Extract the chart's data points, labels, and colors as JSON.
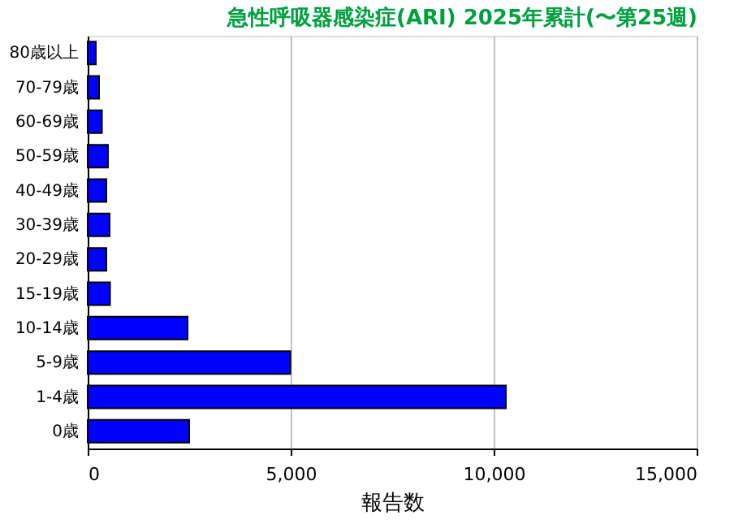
{
  "chart_data": {
    "type": "bar",
    "orientation": "horizontal",
    "title": "急性呼吸器感染症(ARI) 2025年累計(〜第25週)",
    "xlabel": "報告数",
    "categories": [
      "80歳以上",
      "70-79歳",
      "60-69歳",
      "50-59歳",
      "40-49歳",
      "30-39歳",
      "20-29歳",
      "15-19歳",
      "10-14歳",
      "5-9歳",
      "1-4歳",
      "0歳"
    ],
    "values": [
      200,
      280,
      350,
      500,
      460,
      540,
      460,
      550,
      2460,
      4990,
      10300,
      2500
    ],
    "color": "#0000ff",
    "xlim": [
      0,
      15000
    ],
    "xticks": [
      0,
      {
        "value": 5000,
        "label": "5,000"
      },
      {
        "value": 10000,
        "label": "10,000"
      },
      {
        "value": 15000,
        "label": "15,000"
      }
    ],
    "grid": "x"
  }
}
